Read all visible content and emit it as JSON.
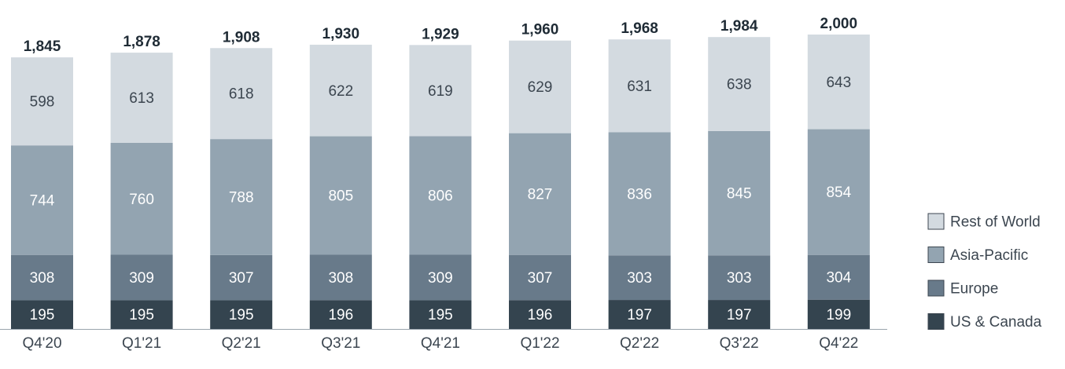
{
  "chart_data": {
    "type": "bar",
    "stacked": true,
    "categories": [
      "Q4'20",
      "Q1'21",
      "Q2'21",
      "Q3'21",
      "Q4'21",
      "Q1'22",
      "Q2'22",
      "Q3'22",
      "Q4'22"
    ],
    "series": [
      {
        "name": "US & Canada",
        "color": "#34444f",
        "label_color": "#ffffff",
        "values": [
          195,
          195,
          195,
          196,
          195,
          196,
          197,
          197,
          199
        ]
      },
      {
        "name": "Europe",
        "color": "#687a8a",
        "label_color": "#ffffff",
        "values": [
          308,
          309,
          307,
          308,
          309,
          307,
          303,
          303,
          304
        ]
      },
      {
        "name": "Asia-Pacific",
        "color": "#93a4b1",
        "label_color": "#ffffff",
        "values": [
          744,
          760,
          788,
          805,
          806,
          827,
          836,
          845,
          854
        ]
      },
      {
        "name": "Rest of World",
        "color": "#d3dae0",
        "label_color": "#3c4650",
        "values": [
          598,
          613,
          618,
          622,
          619,
          629,
          631,
          638,
          643
        ]
      }
    ],
    "totals": [
      "1,845",
      "1,878",
      "1,908",
      "1,930",
      "1,929",
      "1,960",
      "1,968",
      "1,984",
      "2,000"
    ],
    "legend_order": [
      "Rest of World",
      "Asia-Pacific",
      "Europe",
      "US & Canada"
    ],
    "legend_position": "right",
    "grid": false,
    "ylim": [
      0,
      2000
    ]
  }
}
